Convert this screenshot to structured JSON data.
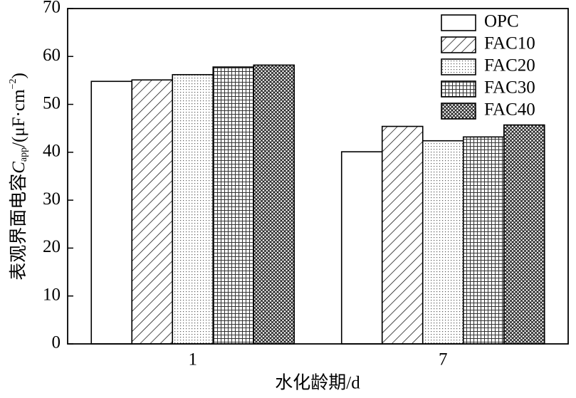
{
  "chart_data": {
    "type": "bar",
    "categories": [
      "1",
      "7"
    ],
    "series": [
      {
        "name": "OPC",
        "color": "#000000",
        "pattern": "none",
        "values": [
          54.8,
          40.1
        ]
      },
      {
        "name": "FAC10",
        "color": "#000000",
        "pattern": "diagonal",
        "values": [
          55.1,
          45.4
        ]
      },
      {
        "name": "FAC20",
        "color": "#000000",
        "pattern": "dots",
        "values": [
          56.2,
          42.4
        ]
      },
      {
        "name": "FAC30",
        "color": "#000000",
        "pattern": "grid",
        "values": [
          57.8,
          43.2
        ]
      },
      {
        "name": "FAC40",
        "color": "#000000",
        "pattern": "crosshatch",
        "values": [
          58.2,
          45.7
        ]
      }
    ],
    "xlabel": "水化龄期/d",
    "ylabel": {
      "text": "表观界面电容",
      "symbol": "C",
      "subscript": "app",
      "unit": "/(μF·cm",
      "exponent": "−2",
      "close": ")"
    },
    "ylim": [
      0,
      70
    ],
    "yticks": [
      0,
      10,
      20,
      30,
      40,
      50,
      60,
      70
    ],
    "grid": false,
    "legend": "upper right"
  }
}
